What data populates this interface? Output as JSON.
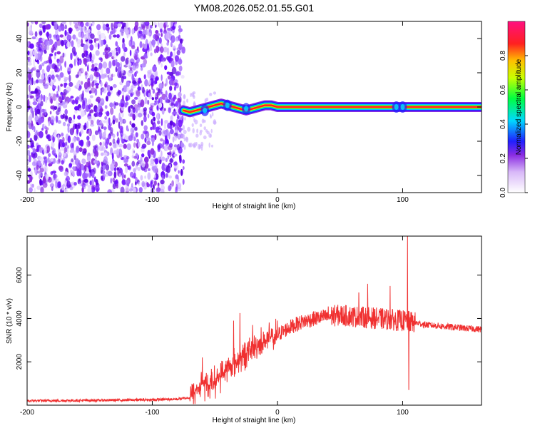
{
  "title": "YM08.2026.052.01.55.G01",
  "chart_data": [
    {
      "type": "heatmap",
      "xlabel": "Height of straight line (km)",
      "ylabel": "Frequency (Hz)",
      "xlim": [
        -200,
        163
      ],
      "ylim": [
        -50,
        50
      ],
      "xticks": [
        -200,
        -100,
        0,
        100
      ],
      "yticks": [
        -40,
        -20,
        0,
        20,
        40
      ],
      "colorbar_label": "Normalized spectral amplitude",
      "colorbar_range": [
        0,
        1
      ],
      "colorbar_ticks": [
        "0.0",
        "0.2",
        "0.4",
        "0.6",
        "0.8"
      ],
      "noise_region_x": [
        -200,
        -75
      ],
      "transition_region_x": [
        -75,
        -50
      ],
      "signal_track": [
        {
          "x": -75,
          "y": -2
        },
        {
          "x": -70,
          "y": -3
        },
        {
          "x": -65,
          "y": -2
        },
        {
          "x": -60,
          "y": -1
        },
        {
          "x": -55,
          "y": 0
        },
        {
          "x": -50,
          "y": 1
        },
        {
          "x": -45,
          "y": 2
        },
        {
          "x": -40,
          "y": 1
        },
        {
          "x": -35,
          "y": 0
        },
        {
          "x": -30,
          "y": -1
        },
        {
          "x": -25,
          "y": -2
        },
        {
          "x": -20,
          "y": -1
        },
        {
          "x": -15,
          "y": 0
        },
        {
          "x": -10,
          "y": 1
        },
        {
          "x": -5,
          "y": 1
        },
        {
          "x": 0,
          "y": 0
        },
        {
          "x": 50,
          "y": 0
        },
        {
          "x": 100,
          "y": 0
        },
        {
          "x": 163,
          "y": 0
        }
      ],
      "signal_amplitude": 1.0
    },
    {
      "type": "line",
      "xlabel": "Height of straight line (km)",
      "ylabel": "SNR (10 * v/v)",
      "xlim": [
        -200,
        163
      ],
      "ylim": [
        0,
        7800
      ],
      "xticks": [
        -200,
        -100,
        0,
        100
      ],
      "yticks": [
        2000,
        4000,
        6000
      ],
      "line_color": "#f03030",
      "envelope": [
        {
          "x": -200,
          "y": 200
        },
        {
          "x": -150,
          "y": 220
        },
        {
          "x": -100,
          "y": 250
        },
        {
          "x": -80,
          "y": 280
        },
        {
          "x": -70,
          "y": 350
        },
        {
          "x": -65,
          "y": 700
        },
        {
          "x": -60,
          "y": 1000
        },
        {
          "x": -55,
          "y": 900
        },
        {
          "x": -50,
          "y": 1100
        },
        {
          "x": -45,
          "y": 1400
        },
        {
          "x": -40,
          "y": 1700
        },
        {
          "x": -35,
          "y": 1900
        },
        {
          "x": -30,
          "y": 2100
        },
        {
          "x": -25,
          "y": 2400
        },
        {
          "x": -20,
          "y": 2600
        },
        {
          "x": -15,
          "y": 2800
        },
        {
          "x": -10,
          "y": 3000
        },
        {
          "x": -5,
          "y": 3100
        },
        {
          "x": 0,
          "y": 3250
        },
        {
          "x": 10,
          "y": 3600
        },
        {
          "x": 20,
          "y": 3850
        },
        {
          "x": 30,
          "y": 4000
        },
        {
          "x": 40,
          "y": 4100
        },
        {
          "x": 50,
          "y": 4150
        },
        {
          "x": 60,
          "y": 4100
        },
        {
          "x": 70,
          "y": 4050
        },
        {
          "x": 80,
          "y": 4000
        },
        {
          "x": 90,
          "y": 3950
        },
        {
          "x": 100,
          "y": 3900
        },
        {
          "x": 110,
          "y": 3800
        },
        {
          "x": 120,
          "y": 3700
        },
        {
          "x": 130,
          "y": 3650
        },
        {
          "x": 140,
          "y": 3600
        },
        {
          "x": 150,
          "y": 3550
        },
        {
          "x": 163,
          "y": 3500
        }
      ],
      "spikes": [
        {
          "x": -60,
          "y": 2200
        },
        {
          "x": -35,
          "y": 3900
        },
        {
          "x": -30,
          "y": 4250
        },
        {
          "x": -20,
          "y": 3700
        },
        {
          "x": 65,
          "y": 5200
        },
        {
          "x": 72,
          "y": 5600
        },
        {
          "x": 90,
          "y": 5500
        },
        {
          "x": 104,
          "y": 7900
        },
        {
          "x": 105,
          "y": 700
        }
      ]
    }
  ]
}
